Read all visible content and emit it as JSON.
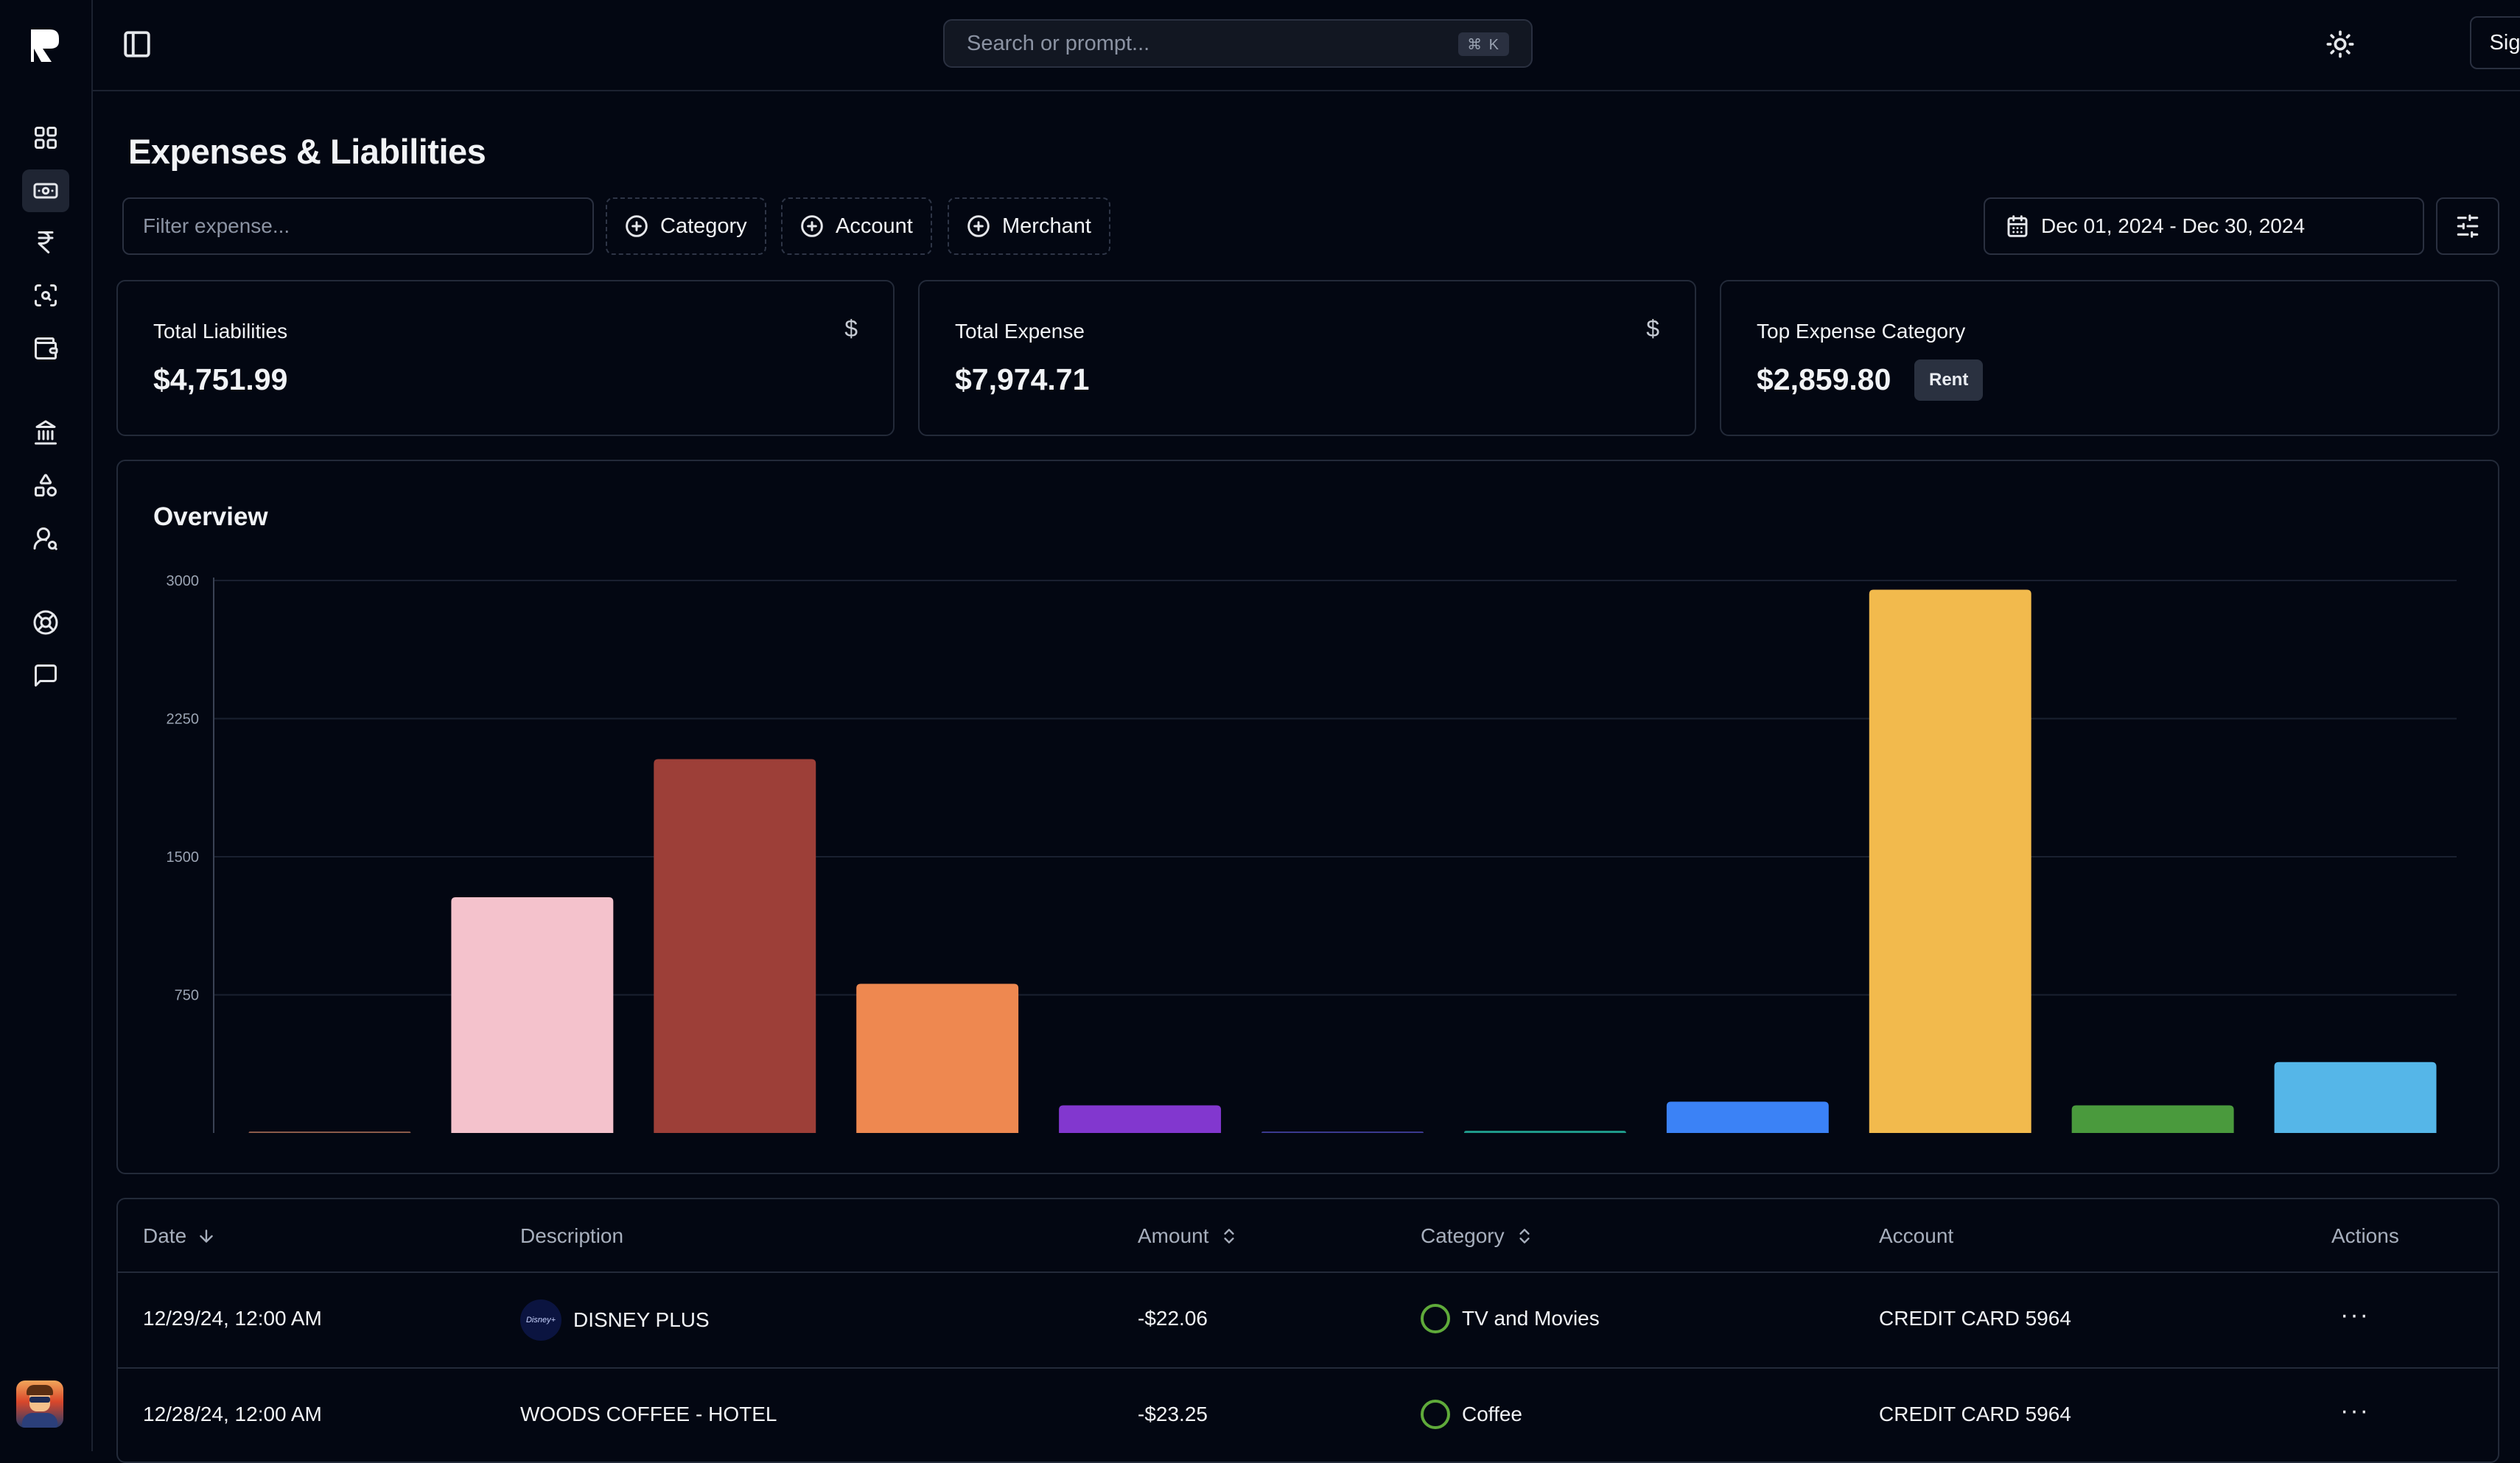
{
  "header": {
    "search_placeholder": "Search or prompt...",
    "search_shortcut": "⌘ K",
    "sign_out_label": "Sign Out"
  },
  "sidebar": {
    "items": [
      {
        "icon": "dashboard-icon"
      },
      {
        "icon": "money-icon",
        "active": true
      },
      {
        "icon": "rupee-icon"
      },
      {
        "icon": "scan-icon"
      },
      {
        "icon": "wallet-icon"
      },
      {
        "icon": "bank-icon"
      },
      {
        "icon": "shapes-icon"
      },
      {
        "icon": "user-settings-icon"
      },
      {
        "icon": "help-icon"
      },
      {
        "icon": "chat-icon"
      }
    ]
  },
  "page": {
    "title": "Expenses & Liabilities",
    "filter_placeholder": "Filter expense...",
    "chips": [
      "Category",
      "Account",
      "Merchant"
    ],
    "date_range": "Dec 01, 2024 - Dec 30, 2024"
  },
  "cards": [
    {
      "label": "Total Liabilities",
      "value": "$4,751.99",
      "icon": "dollar-icon",
      "icon_text": "$"
    },
    {
      "label": "Total Expense",
      "value": "$7,974.71",
      "icon": "dollar-icon",
      "icon_text": "$"
    },
    {
      "label": "Top Expense Category",
      "value": "$2,859.80",
      "badge": "Rent"
    }
  ],
  "overview": {
    "title": "Overview"
  },
  "chart_data": {
    "type": "bar",
    "title": "Overview",
    "xlabel": "",
    "ylabel": "",
    "ylim": [
      0,
      3000
    ],
    "yticks": [
      750,
      1500,
      2250,
      3000
    ],
    "grid": true,
    "values": [
      5,
      1280,
      2030,
      810,
      150,
      8,
      12,
      170,
      2950,
      150,
      385
    ],
    "colors": [
      "#8b5a4a",
      "#f4c2cc",
      "#9d3f38",
      "#ee8850",
      "#8237cf",
      "#3b3a8f",
      "#1f9a8a",
      "#3b82f6",
      "#f2ba4d",
      "#4a9a3d",
      "#55b6e8"
    ]
  },
  "table": {
    "columns": [
      {
        "label": "Date",
        "sort": "desc"
      },
      {
        "label": "Description",
        "sort": null
      },
      {
        "label": "Amount",
        "sort": "both"
      },
      {
        "label": "Category",
        "sort": "both"
      },
      {
        "label": "Account",
        "sort": null
      },
      {
        "label": "Actions",
        "sort": null
      }
    ],
    "rows": [
      {
        "date": "12/29/24, 12:00 AM",
        "description": "DISNEY PLUS",
        "logo": "Disney+",
        "amount": "-$22.06",
        "category": "TV and Movies",
        "account": "CREDIT CARD 5964",
        "actions": "···"
      },
      {
        "date": "12/28/24, 12:00 AM",
        "description": "WOODS COFFEE - HOTEL",
        "amount": "-$23.25",
        "category": "Coffee",
        "account": "CREDIT CARD 5964",
        "actions": "···"
      }
    ]
  },
  "colors": {
    "background": "#030712",
    "border": "#232a39",
    "category_ring": "#5faa3a"
  }
}
